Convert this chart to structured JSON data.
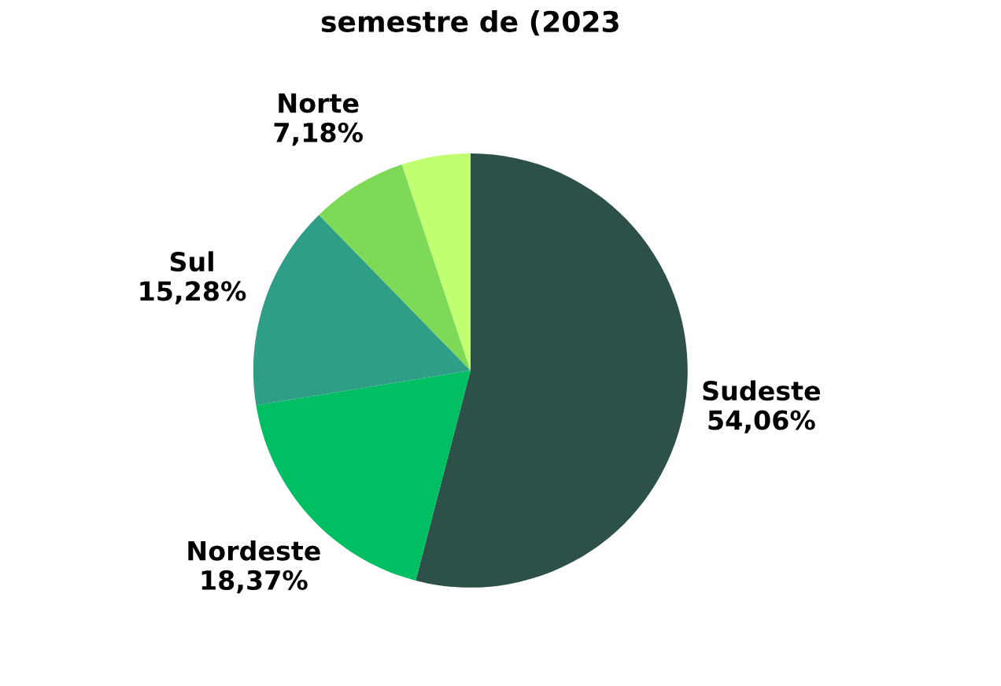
{
  "chart_data": {
    "type": "pie",
    "title": "semestre de (2023",
    "categories": [
      "Sudeste",
      "Nordeste",
      "Sul",
      "Norte",
      null
    ],
    "values": [
      54.06,
      18.37,
      15.28,
      7.18,
      5.11
    ],
    "value_labels": [
      "54,06%",
      "18,37%",
      "15,28%",
      "7,18%",
      null
    ],
    "colors": [
      "#2d5049",
      "#00bf63",
      "#2e9e87",
      "#7ed957",
      "#c1ff72"
    ],
    "legend": false
  }
}
